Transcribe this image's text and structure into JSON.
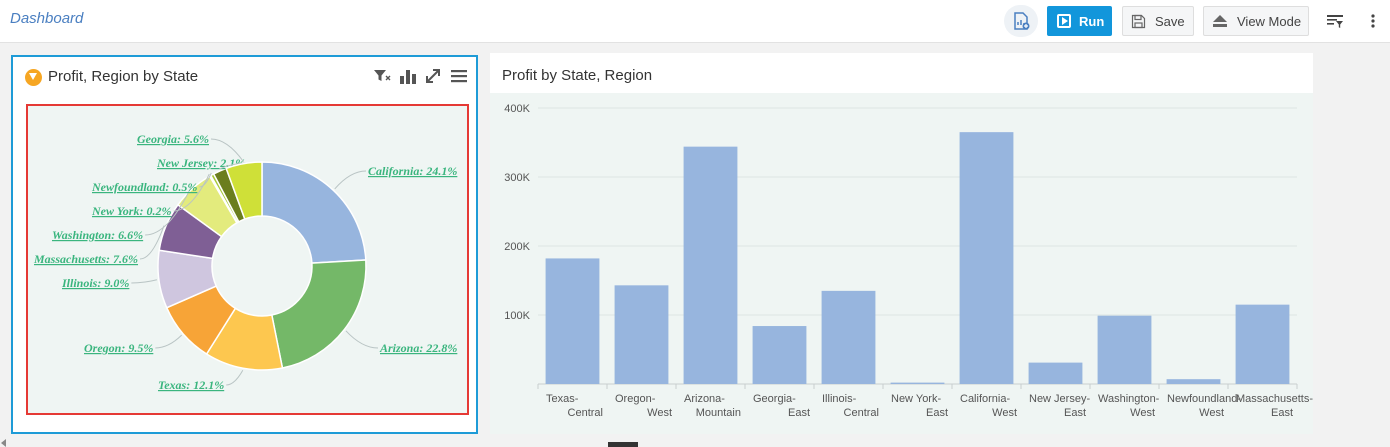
{
  "toolbar": {
    "title": "Dashboard",
    "run_label": "Run",
    "save_label": "Save",
    "view_mode_label": "View Mode"
  },
  "pie_panel": {
    "title": "Profit, Region by State",
    "chart_data": {
      "type": "pie",
      "title": "",
      "slices": [
        {
          "label": "California: 24.1%",
          "value": 24.1,
          "color": "#97b5de"
        },
        {
          "label": "Arizona: 22.8%",
          "value": 22.8,
          "color": "#74b868"
        },
        {
          "label": "Texas: 12.1%",
          "value": 12.1,
          "color": "#fdc74f"
        },
        {
          "label": "Oregon: 9.5%",
          "value": 9.5,
          "color": "#f7a437"
        },
        {
          "label": "Illinois: 9.0%",
          "value": 9.0,
          "color": "#cfc6df"
        },
        {
          "label": "Massachusetts: 7.6%",
          "value": 7.6,
          "color": "#7f5f95"
        },
        {
          "label": "Washington: 6.6%",
          "value": 6.6,
          "color": "#e3eb7d"
        },
        {
          "label": "New York: 0.2%",
          "value": 0.2,
          "color": "#3c8bb9"
        },
        {
          "label": "Newfoundland: 0.5%",
          "value": 0.5,
          "color": "#a7c938"
        },
        {
          "label": "New Jersey: 2.1%",
          "value": 2.1,
          "color": "#6b7e1e"
        },
        {
          "label": "Georgia: 5.6%",
          "value": 5.6,
          "color": "#cfe038"
        }
      ]
    }
  },
  "bar_panel": {
    "title": "Profit by State, Region",
    "chart_data": {
      "type": "bar",
      "title": "",
      "categories": [
        [
          "Texas-",
          "Central"
        ],
        [
          "Oregon-",
          "West"
        ],
        [
          "Arizona-",
          "Mountain"
        ],
        [
          "Georgia-",
          "East"
        ],
        [
          "Illinois-",
          "Central"
        ],
        [
          "New York-",
          "East"
        ],
        [
          "California-",
          "West"
        ],
        [
          "New Jersey-",
          "East"
        ],
        [
          "Washington-",
          "West"
        ],
        [
          "Newfoundland-",
          "West"
        ],
        [
          "Massachusetts-",
          "East"
        ]
      ],
      "values": [
        182000,
        143000,
        344000,
        84000,
        135000,
        2000,
        365000,
        31000,
        99000,
        7000,
        115000
      ],
      "ylim": [
        0,
        400000
      ],
      "yticks": [
        "100K",
        "200K",
        "300K",
        "400K"
      ],
      "ytick_values": [
        100000,
        200000,
        300000,
        400000
      ],
      "color": "#97b5de",
      "grid": true
    }
  }
}
